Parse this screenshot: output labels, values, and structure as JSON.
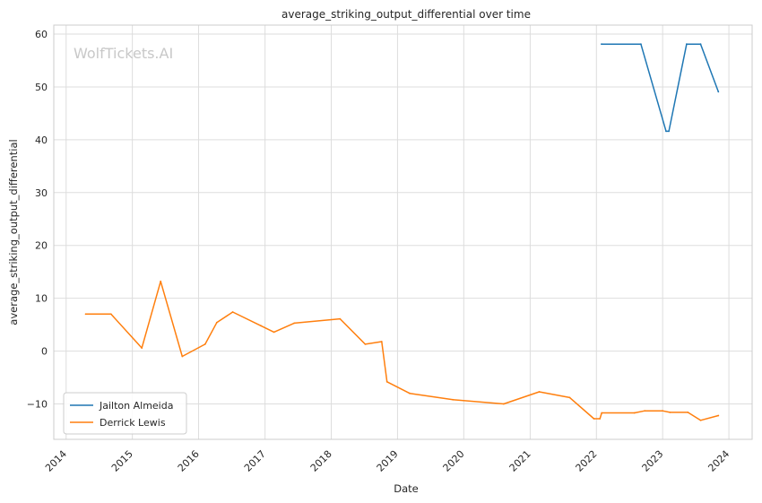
{
  "chart_data": {
    "type": "line",
    "title": "average_striking_output_differential over time",
    "xlabel": "Date",
    "ylabel": "average_striking_output_differential",
    "watermark": "WolfTickets.AI",
    "x_ticks": [
      "2014",
      "2015",
      "2016",
      "2017",
      "2018",
      "2019",
      "2020",
      "2021",
      "2022",
      "2023",
      "2024"
    ],
    "y_ticks": [
      -10,
      0,
      10,
      20,
      30,
      40,
      50,
      60
    ],
    "xlim": [
      "2013-10-25",
      "2024-05-08"
    ],
    "ylim": [
      -16.7,
      61.7
    ],
    "grid": true,
    "legend_position": "lower-left",
    "series": [
      {
        "name": "Jailton Almeida",
        "color": "#1f77b4",
        "points": [
          [
            "2022-01-29",
            58.1
          ],
          [
            "2022-09-03",
            58.1
          ],
          [
            "2023-01-20",
            41.6
          ],
          [
            "2023-02-04",
            41.6
          ],
          [
            "2023-05-13",
            58.1
          ],
          [
            "2023-07-29",
            58.1
          ],
          [
            "2023-11-04",
            49.1
          ]
        ]
      },
      {
        "name": "Derrick Lewis",
        "color": "#ff7f0e",
        "points": [
          [
            "2014-04-19",
            7.0
          ],
          [
            "2014-09-05",
            7.0
          ],
          [
            "2015-02-22",
            0.6
          ],
          [
            "2015-06-06",
            13.2
          ],
          [
            "2015-10-03",
            -1.0
          ],
          [
            "2016-02-06",
            1.3
          ],
          [
            "2016-04-10",
            5.4
          ],
          [
            "2016-07-07",
            7.4
          ],
          [
            "2016-12-09",
            4.8
          ],
          [
            "2017-02-19",
            3.6
          ],
          [
            "2017-06-11",
            5.3
          ],
          [
            "2018-02-18",
            6.1
          ],
          [
            "2018-07-07",
            1.3
          ],
          [
            "2018-10-06",
            1.8
          ],
          [
            "2018-11-04",
            -5.8
          ],
          [
            "2019-03-09",
            -8.0
          ],
          [
            "2019-11-02",
            -9.2
          ],
          [
            "2020-08-08",
            -10.0
          ],
          [
            "2021-02-20",
            -7.7
          ],
          [
            "2021-08-07",
            -8.8
          ],
          [
            "2021-12-18",
            -12.8
          ],
          [
            "2022-01-20",
            -12.8
          ],
          [
            "2022-01-30",
            -11.7
          ],
          [
            "2022-07-30",
            -11.7
          ],
          [
            "2022-09-24",
            -11.3
          ],
          [
            "2022-12-31",
            -11.3
          ],
          [
            "2023-02-10",
            -11.6
          ],
          [
            "2023-05-20",
            -11.6
          ],
          [
            "2023-07-29",
            -13.1
          ],
          [
            "2023-11-04",
            -12.2
          ]
        ]
      }
    ]
  }
}
